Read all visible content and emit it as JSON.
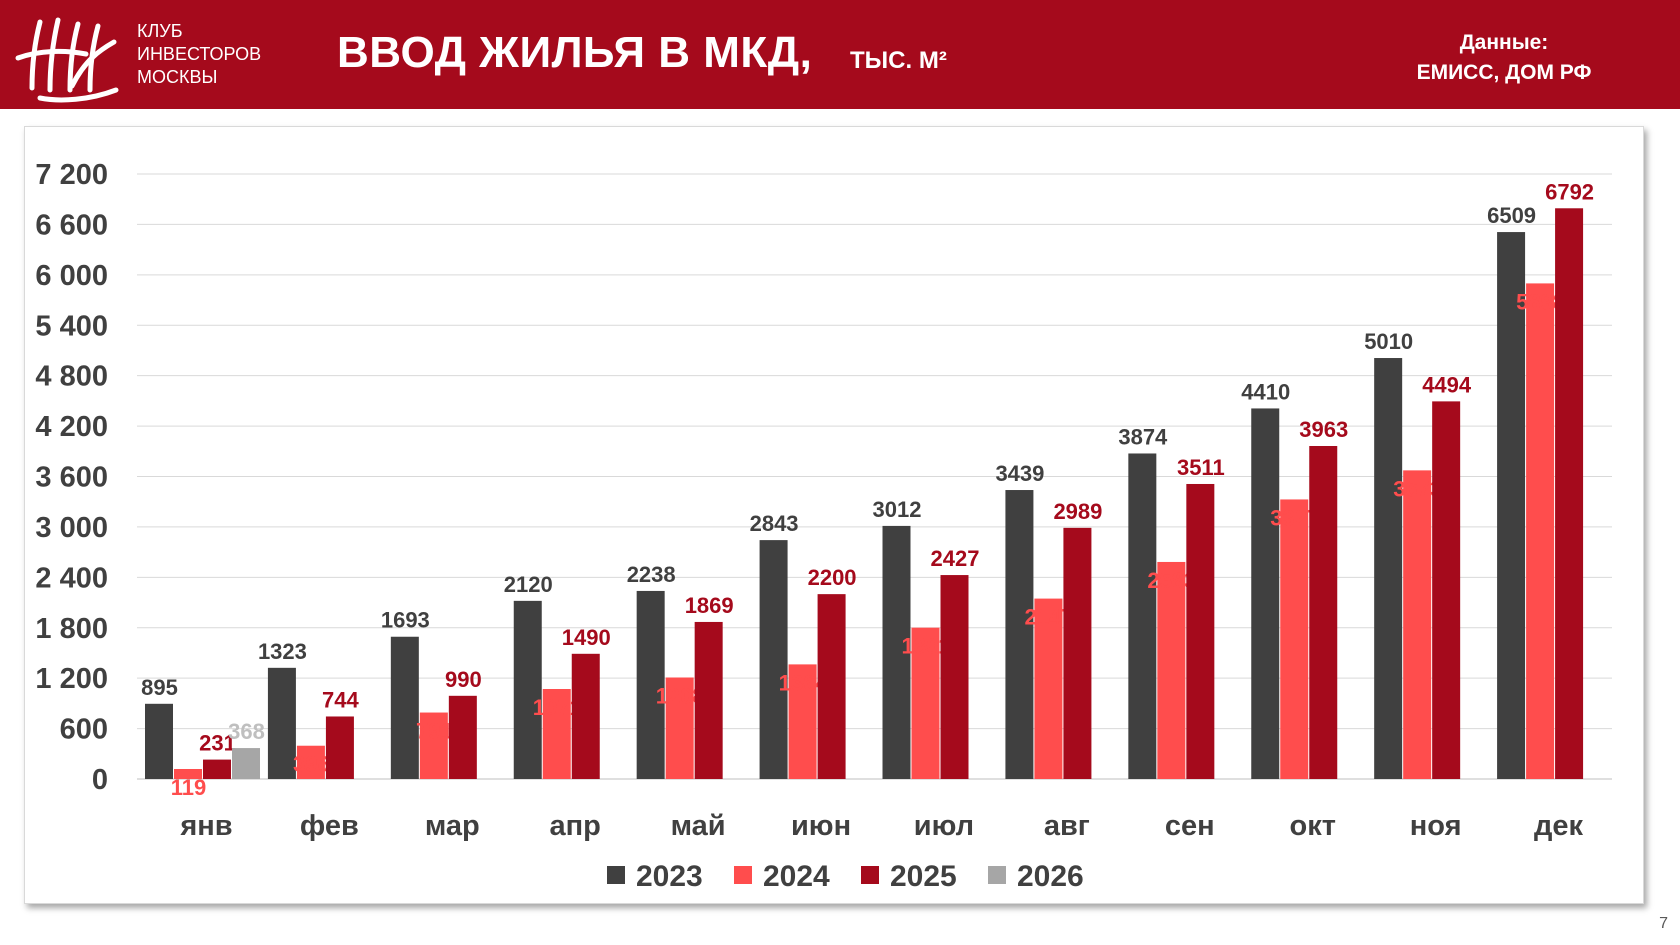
{
  "header": {
    "logo_lines": [
      "КЛУБ",
      "ИНВЕСТОРОВ",
      "МОСКВЫ"
    ],
    "title": "ВВОД ЖИЛЬЯ В МКД,",
    "unit": "ТЫС. М²",
    "source_label": "Данные:",
    "source_value": "ЕМИСС, ДОМ РФ"
  },
  "page_number": "7",
  "colors": {
    "header_bg": "#a50a1c",
    "s2023": "#404040",
    "s2024": "#ff4d4d",
    "s2025": "#a50a1c",
    "s2026": "#a6a6a6"
  },
  "chart_data": {
    "type": "bar",
    "title": "ВВОД ЖИЛЬЯ В МКД, ТЫС. М²",
    "xlabel": "",
    "ylabel": "",
    "ylim": [
      0,
      7200
    ],
    "yticks": [
      0,
      600,
      1200,
      1800,
      2400,
      3000,
      3600,
      4200,
      4800,
      5400,
      6000,
      6600,
      7200
    ],
    "ytick_labels": [
      "0",
      "600",
      "1 200",
      "1 800",
      "2 400",
      "3 000",
      "3 600",
      "4 200",
      "4 800",
      "5 400",
      "6 000",
      "6 600",
      "7 200"
    ],
    "grid": true,
    "legend": "bottom",
    "categories": [
      "янв",
      "фев",
      "мар",
      "апр",
      "май",
      "июн",
      "июл",
      "авг",
      "сен",
      "окт",
      "ноя",
      "дек"
    ],
    "series": [
      {
        "name": "2023",
        "color": "#404040",
        "label_color": "#404040",
        "values": [
          895,
          1323,
          1693,
          2120,
          2238,
          2843,
          3012,
          3439,
          3874,
          4410,
          5010,
          6509
        ]
      },
      {
        "name": "2024",
        "color": "#ff4d4d",
        "label_color": "#ff4d4d",
        "values": [
          119,
          396,
          791,
          1071,
          1208,
          1364,
          1801,
          2147,
          2583,
          3327,
          3673,
          5898
        ]
      },
      {
        "name": "2025",
        "color": "#a50a1c",
        "label_color": "#a50a1c",
        "values": [
          231,
          744,
          990,
          1490,
          1869,
          2200,
          2427,
          2989,
          3511,
          3963,
          4494,
          6792
        ]
      },
      {
        "name": "2026",
        "color": "#a6a6a6",
        "label_color": "#bfbfbf",
        "values": [
          368,
          null,
          null,
          null,
          null,
          null,
          null,
          null,
          null,
          null,
          null,
          null
        ]
      }
    ]
  }
}
